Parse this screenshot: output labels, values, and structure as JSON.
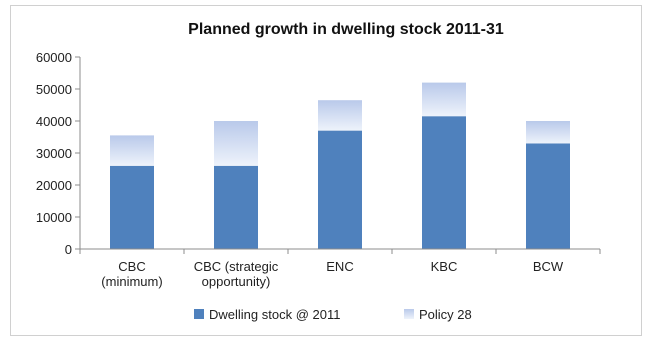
{
  "chart_data": {
    "type": "bar",
    "stacked": true,
    "title": "Planned growth in dwelling stock 2011-31",
    "categories": [
      [
        "CBC",
        "(minimum)"
      ],
      [
        "CBC (strategic",
        "opportunity)"
      ],
      [
        "ENC"
      ],
      [
        "KBC"
      ],
      [
        "BCW"
      ]
    ],
    "series": [
      {
        "name": "Dwelling stock @ 2011",
        "color": "#4f81bd",
        "values": [
          26000,
          26000,
          37000,
          41500,
          33000
        ]
      },
      {
        "name": "Policy 28",
        "color": "#c6d4ef",
        "values": [
          9500,
          14000,
          9500,
          10500,
          7000
        ]
      }
    ],
    "ylim": [
      0,
      60000
    ],
    "yticks": [
      0,
      10000,
      20000,
      30000,
      40000,
      50000,
      60000
    ],
    "legend_position": "bottom",
    "grid": false
  }
}
